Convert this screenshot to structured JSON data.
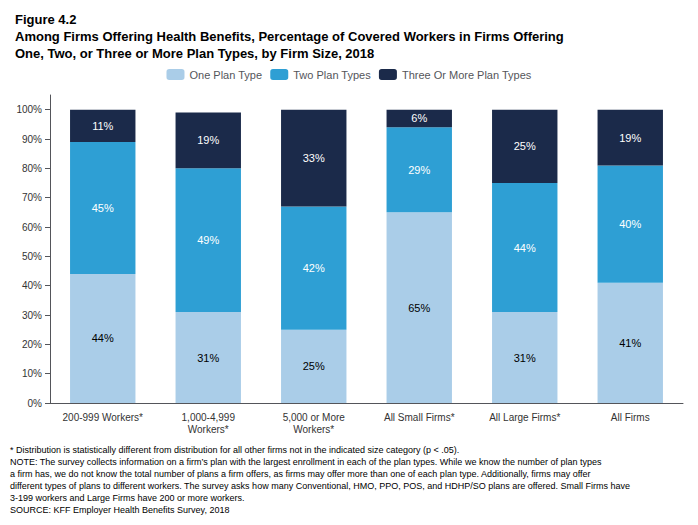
{
  "chart_data": {
    "type": "bar",
    "title": "Figure 4.2\nAmong Firms Offering Health Benefits, Percentage of Covered Workers in Firms Offering\nOne, Two, or Three or More Plan Types, by Firm Size, 2018",
    "categories": [
      "200-999 Workers*",
      "1,000-4,999\nWorkers*",
      "5,000 or More\nWorkers*",
      "All Small Firms*",
      "All Large Firms*",
      "All Firms"
    ],
    "series": [
      {
        "name": "One Plan Type",
        "color": "#aacde8",
        "values": [
          44,
          31,
          25,
          65,
          31,
          41
        ],
        "value_labels": [
          "44%",
          "31%",
          "25%",
          "65%",
          "31%",
          "41%"
        ]
      },
      {
        "name": "Two Plan Types",
        "color": "#2e9fd4",
        "values": [
          45,
          49,
          42,
          29,
          44,
          40
        ],
        "value_labels": [
          "45%",
          "49%",
          "42%",
          "29%",
          "44%",
          "40%"
        ]
      },
      {
        "name": "Three Or More Plan Types",
        "color": "#1b2a4a",
        "values": [
          11,
          19,
          33,
          6,
          25,
          19
        ],
        "value_labels": [
          "11%",
          "19%",
          "33%",
          "6%",
          "25%",
          "19%"
        ]
      }
    ],
    "ylim": [
      0,
      105
    ],
    "yticks": [
      {
        "value": 0,
        "label": "0%"
      },
      {
        "value": 10,
        "label": "10%"
      },
      {
        "value": 20,
        "label": "20%"
      },
      {
        "value": 30,
        "label": "30%"
      },
      {
        "value": 40,
        "label": "40%"
      },
      {
        "value": 50,
        "label": "50%"
      },
      {
        "value": 60,
        "label": "60%"
      },
      {
        "value": 70,
        "label": "70%"
      },
      {
        "value": 80,
        "label": "80%"
      },
      {
        "value": 90,
        "label": "90%"
      },
      {
        "value": 100,
        "label": "100%"
      }
    ],
    "grid": false,
    "legend": "top",
    "stacked": true,
    "data_labels": true,
    "annotations": [
      "* Distribution is statistically different from distribution for all other firms not in the indicated size category (p < .05).",
      "NOTE: The survey collects information on a firm’s plan with the largest enrollment in each of the plan types. While we know the number of plan types",
      "a firm has, we do not know the total number of plans a firm offers, as firms may offer more than one of each plan type. Additionally, firms may offer",
      "different types of plans to different workers. The survey asks how many Conventional, HMO, PPO, POS, and HDHP/SO plans are offered. Small Firms have",
      "3-199 workers and Large Firms have 200 or more workers.",
      "SOURCE: KFF Employer Health Benefits Survey, 2018"
    ]
  }
}
